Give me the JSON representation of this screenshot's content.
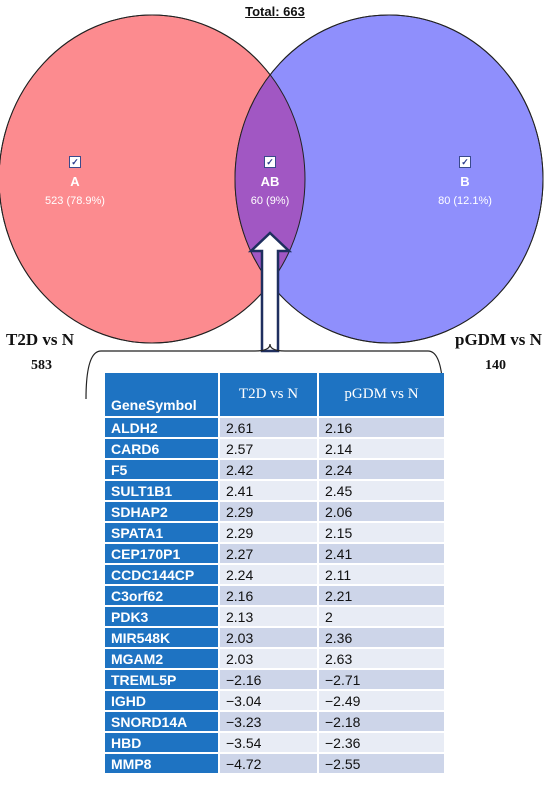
{
  "venn": {
    "total_label": "Total: 663",
    "sets": [
      {
        "id": "A",
        "name": "T2D vs N",
        "total": "583",
        "color": "#fc8b8f"
      },
      {
        "id": "B",
        "name": "pGDM vs N",
        "total": "140",
        "color": "#8f8ffc"
      }
    ],
    "intersection_color": "#a157c3",
    "regions": {
      "a": {
        "label": "A",
        "count": "523 (78.9%)",
        "checked": true
      },
      "ab": {
        "label": "AB",
        "count": "60 (9%)",
        "checked": true
      },
      "b": {
        "label": "B",
        "count": "80 (12.1%)",
        "checked": true
      }
    }
  },
  "table": {
    "headers": [
      "GeneSymbol",
      "T2D vs N",
      "pGDM vs N"
    ],
    "header_color": "#1e73c2",
    "rows": [
      [
        "ALDH2",
        "2.61",
        "2.16"
      ],
      [
        "CARD6",
        "2.57",
        "2.14"
      ],
      [
        "F5",
        "2.42",
        "2.24"
      ],
      [
        "SULT1B1",
        "2.41",
        "2.45"
      ],
      [
        "SDHAP2",
        "2.29",
        "2.06"
      ],
      [
        "SPATA1",
        "2.29",
        "2.15"
      ],
      [
        "CEP170P1",
        "2.27",
        "2.41"
      ],
      [
        "CCDC144CP",
        "2.24",
        "2.11"
      ],
      [
        "C3orf62",
        "2.16",
        "2.21"
      ],
      [
        "PDK3",
        "2.13",
        "2"
      ],
      [
        "MIR548K",
        "2.03",
        "2.36"
      ],
      [
        "MGAM2",
        "2.03",
        "2.63"
      ],
      [
        "TREML5P",
        "−2.16",
        "−2.71"
      ],
      [
        "IGHD",
        "−3.04",
        "−2.49"
      ],
      [
        "SNORD14A",
        "−3.23",
        "−2.18"
      ],
      [
        "HBD",
        "−3.54",
        "−2.36"
      ],
      [
        "MMP8",
        "−4.72",
        "−2.55"
      ]
    ]
  }
}
